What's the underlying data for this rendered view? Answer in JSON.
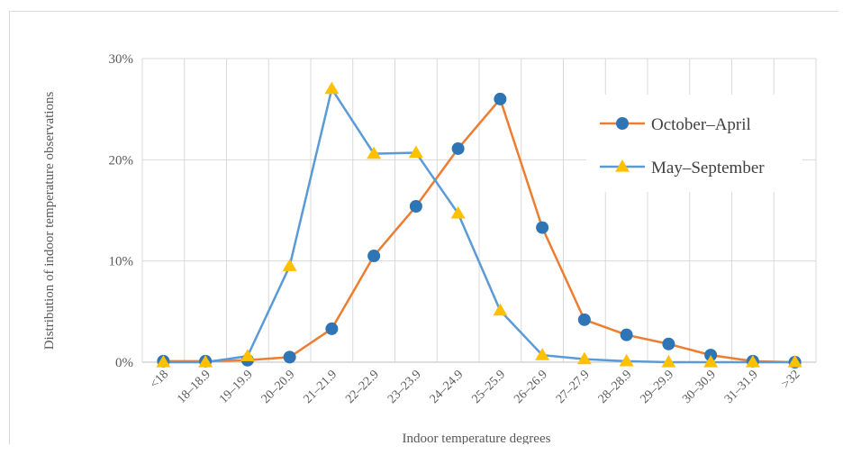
{
  "chart_data": {
    "type": "line",
    "xlabel": "Indoor temperature degrees",
    "ylabel": "Distribution of indoor temperature observations",
    "categories": [
      "<18",
      "18–18.9",
      "19–19.9",
      "20–20.9",
      "21–21.9",
      "22–22.9",
      "23–23.9",
      "24–24.9",
      "25–25.9",
      "26–26.9",
      "27–27.9",
      "28–28.9",
      "29–29.9",
      "30–30.9",
      "31–31.9",
      ">32"
    ],
    "y_ticks": [
      "0%",
      "10%",
      "20%",
      "30%"
    ],
    "ylim": [
      0,
      30
    ],
    "grid": true,
    "legend_position": "top-right",
    "series": [
      {
        "name": "October–April",
        "marker": "circle",
        "line_color": "#ED7D31",
        "marker_color": "#2E75B6",
        "values": [
          0.1,
          0.1,
          0.2,
          0.5,
          3.3,
          10.5,
          15.4,
          21.1,
          26.0,
          13.3,
          4.2,
          2.7,
          1.8,
          0.7,
          0.1,
          0.0
        ]
      },
      {
        "name": "May–September",
        "marker": "triangle",
        "line_color": "#5B9BD5",
        "marker_color": "#FFC000",
        "values": [
          0.0,
          0.0,
          0.6,
          9.5,
          27.0,
          20.6,
          20.7,
          14.7,
          5.1,
          0.7,
          0.3,
          0.1,
          0.0,
          0.0,
          0.0,
          0.0
        ]
      }
    ]
  }
}
